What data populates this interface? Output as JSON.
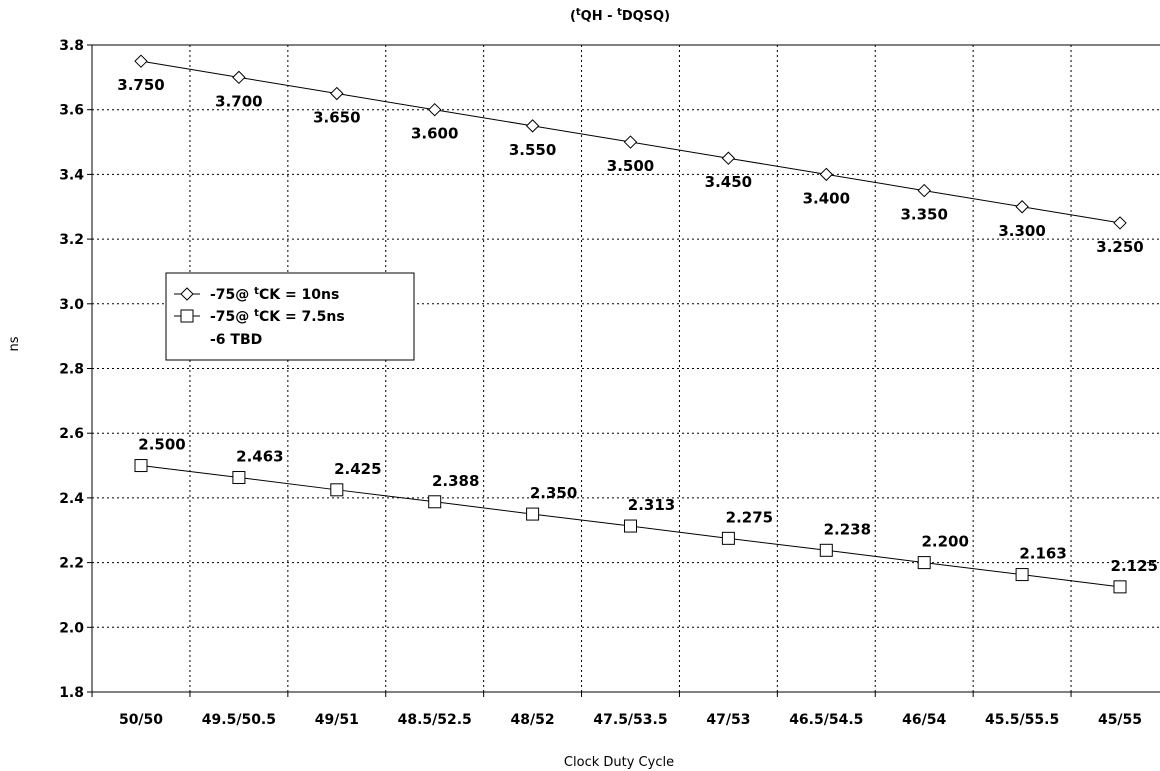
{
  "chart_data": {
    "type": "line",
    "title": "(tQH - tDQSQ)",
    "title_parts": {
      "open": "(",
      "sup1": "t",
      "a": "QH - ",
      "sup2": "t",
      "b": "DQSQ)"
    },
    "xlabel": "Clock Duty Cycle",
    "ylabel": "ns",
    "categories": [
      "50/50",
      "49.5/50.5",
      "49/51",
      "48.5/52.5",
      "48/52",
      "47.5/53.5",
      "47/53",
      "46.5/54.5",
      "46/54",
      "45.5/55.5",
      "45/55"
    ],
    "ylim": [
      1.8,
      3.8
    ],
    "yticks": [
      1.8,
      2.0,
      2.2,
      2.4,
      2.6,
      2.8,
      3.0,
      3.2,
      3.4,
      3.6,
      3.8
    ],
    "ytick_labels": [
      "1.8",
      "2.0",
      "2.2",
      "2.4",
      "2.6",
      "2.8",
      "3.0",
      "3.2",
      "3.4",
      "3.6",
      "3.8"
    ],
    "grid": "dotted",
    "legend_position": "middle-left",
    "series": [
      {
        "name": "-75@ tCK = 10ns",
        "name_parts": {
          "a": "-75@ ",
          "sup": "t",
          "b": "CK = 10ns"
        },
        "marker": "diamond",
        "values": [
          3.75,
          3.7,
          3.65,
          3.6,
          3.55,
          3.5,
          3.45,
          3.4,
          3.35,
          3.3,
          3.25
        ],
        "labels": [
          "3.750",
          "3.700",
          "3.650",
          "3.600",
          "3.550",
          "3.500",
          "3.450",
          "3.400",
          "3.350",
          "3.300",
          "3.250"
        ]
      },
      {
        "name": "-75@ tCK = 7.5ns",
        "name_parts": {
          "a": "-75@ ",
          "sup": "t",
          "b": "CK = 7.5ns"
        },
        "marker": "square",
        "values": [
          2.5,
          2.463,
          2.425,
          2.388,
          2.35,
          2.313,
          2.275,
          2.238,
          2.2,
          2.163,
          2.125
        ],
        "labels": [
          "2.500",
          "2.463",
          "2.425",
          "2.388",
          "2.350",
          "2.313",
          "2.275",
          "2.238",
          "2.200",
          "2.163",
          "2.125"
        ]
      }
    ],
    "legend_note": "-6  TBD"
  }
}
